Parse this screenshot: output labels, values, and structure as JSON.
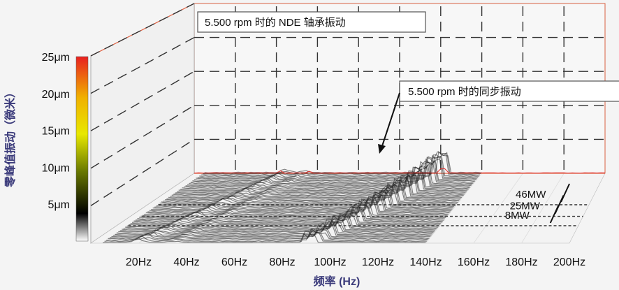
{
  "chart_data": {
    "type": "waterfall-3d",
    "title": "5.500 rpm 时的 NDE 轴承振动",
    "annotation": "5.500 rpm 时的同步振动",
    "xlabel": "频率 (Hz)",
    "ylabel": "零峰值振动（微米）",
    "x_ticks": [
      "20Hz",
      "40Hz",
      "60Hz",
      "80Hz",
      "100Hz",
      "120Hz",
      "140Hz",
      "160Hz",
      "180Hz",
      "200Hz"
    ],
    "y_ticks": [
      "5μm",
      "10μm",
      "15μm",
      "20μm",
      "25μm"
    ],
    "xlim": [
      0,
      200
    ],
    "ylim": [
      0,
      25
    ],
    "load_labels": [
      "46MW",
      "25MW",
      "8MW"
    ],
    "load_levels_mw": [
      8,
      25,
      46
    ],
    "synchronous_peak": {
      "frequency_hz": 92,
      "amplitude_um": 7
    },
    "colorbar": [
      "#e82020",
      "#f0b000",
      "#e8e800",
      "#6a7a00",
      "#000000",
      "#ffffff"
    ]
  }
}
